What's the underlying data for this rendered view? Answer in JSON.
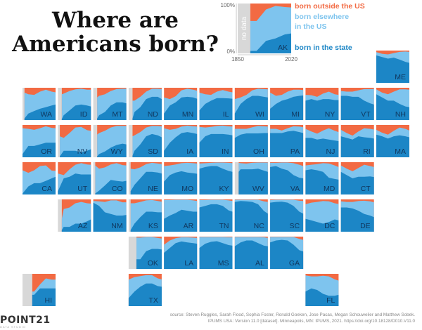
{
  "title_lines": [
    "Where are",
    "Americans born?"
  ],
  "colors": {
    "outside": "#f26a43",
    "elsewhere": "#7ec4ee",
    "state": "#1c86c6",
    "nodata": "#d8d8d8",
    "label": "#10375e"
  },
  "legend": {
    "outside_label": "born outside the US",
    "elsewhere_label_lines": [
      "born elsewhere",
      "in the US"
    ],
    "state_label": "born in the state",
    "y_max": "100%",
    "y_min": "0%",
    "x_start": "1850",
    "x_end": "2020",
    "no_data": "no data",
    "state": "AK"
  },
  "source_lines": [
    "source: Steven Ruggles, Sarah Flood, Sophia Foster, Ronald Goeken, Jose Pacas, Megan Schouweiler and Matthew Sobek.",
    "IPUMS USA: Version 11.0 [dataset]. Minneapolis, MN: IPUMS, 2021. https://doi.org/10.18128/D010.V11.0"
  ],
  "brand": "POINT21",
  "brand_sub": "DATA STUDIO",
  "chart_data": {
    "type": "area",
    "stacking": "percent",
    "x_range": [
      1850,
      2020
    ],
    "y_range": [
      0,
      100
    ],
    "series_order": [
      "born in the state",
      "born elsewhere in the US",
      "born outside the US"
    ],
    "years": [
      1850,
      1880,
      1910,
      1940,
      1970,
      2000,
      2020
    ],
    "states": [
      {
        "code": "AK",
        "start": 1890,
        "in_state": [
          null,
          null,
          5,
          25,
          30,
          38,
          40
        ],
        "outside": [
          null,
          null,
          35,
          12,
          5,
          7,
          8
        ]
      },
      {
        "code": "ME",
        "start": 1850,
        "in_state": [
          85,
          80,
          75,
          78,
          72,
          65,
          62
        ],
        "outside": [
          5,
          10,
          12,
          8,
          4,
          3,
          4
        ]
      },
      {
        "code": "WA",
        "start": 1860,
        "in_state": [
          5,
          20,
          28,
          35,
          40,
          45,
          48
        ],
        "outside": [
          15,
          20,
          22,
          12,
          6,
          12,
          14
        ]
      },
      {
        "code": "ID",
        "start": 1870,
        "in_state": [
          3,
          15,
          30,
          45,
          48,
          45,
          42
        ],
        "outside": [
          20,
          18,
          10,
          5,
          3,
          6,
          6
        ]
      },
      {
        "code": "MT",
        "start": 1870,
        "in_state": [
          5,
          15,
          25,
          45,
          55,
          55,
          52
        ],
        "outside": [
          30,
          25,
          20,
          10,
          4,
          3,
          3
        ]
      },
      {
        "code": "ND",
        "start": 1870,
        "in_state": [
          5,
          25,
          40,
          65,
          72,
          72,
          65
        ],
        "outside": [
          40,
          40,
          28,
          12,
          3,
          3,
          4
        ]
      },
      {
        "code": "MN",
        "start": 1850,
        "in_state": [
          20,
          45,
          55,
          70,
          72,
          70,
          66
        ],
        "outside": [
          30,
          35,
          26,
          8,
          3,
          6,
          9
        ]
      },
      {
        "code": "IL",
        "start": 1850,
        "in_state": [
          30,
          50,
          60,
          68,
          68,
          67,
          66
        ],
        "outside": [
          15,
          20,
          22,
          12,
          7,
          12,
          14
        ]
      },
      {
        "code": "WI",
        "start": 1850,
        "in_state": [
          20,
          50,
          65,
          75,
          75,
          72,
          70
        ],
        "outside": [
          35,
          30,
          22,
          8,
          3,
          4,
          5
        ]
      },
      {
        "code": "MI",
        "start": 1850,
        "in_state": [
          35,
          50,
          60,
          65,
          72,
          75,
          76
        ],
        "outside": [
          15,
          25,
          22,
          12,
          6,
          6,
          7
        ]
      },
      {
        "code": "NY",
        "start": 1850,
        "in_state": [
          60,
          65,
          60,
          65,
          65,
          62,
          62
        ],
        "outside": [
          22,
          23,
          28,
          18,
          12,
          20,
          22
        ]
      },
      {
        "code": "VT",
        "start": 1850,
        "in_state": [
          75,
          75,
          72,
          72,
          60,
          52,
          48
        ],
        "outside": [
          10,
          12,
          12,
          8,
          4,
          4,
          4
        ]
      },
      {
        "code": "NH",
        "start": 1850,
        "in_state": [
          80,
          70,
          60,
          60,
          50,
          42,
          40
        ],
        "outside": [
          5,
          15,
          20,
          12,
          5,
          5,
          6
        ]
      },
      {
        "code": "OR",
        "start": 1850,
        "in_state": [
          10,
          35,
          35,
          40,
          45,
          45,
          45
        ],
        "outside": [
          10,
          12,
          15,
          10,
          4,
          9,
          10
        ]
      },
      {
        "code": "NV",
        "start": 1860,
        "in_state": [
          3,
          20,
          20,
          20,
          15,
          20,
          25
        ],
        "outside": [
          35,
          40,
          25,
          8,
          6,
          16,
          18
        ]
      },
      {
        "code": "WY",
        "start": 1870,
        "in_state": [
          3,
          10,
          18,
          30,
          38,
          42,
          40
        ],
        "outside": [
          30,
          25,
          18,
          8,
          3,
          3,
          3
        ]
      },
      {
        "code": "SD",
        "start": 1870,
        "in_state": [
          5,
          20,
          40,
          65,
          72,
          68,
          62
        ],
        "outside": [
          35,
          32,
          22,
          8,
          3,
          3,
          4
        ]
      },
      {
        "code": "IA",
        "start": 1850,
        "in_state": [
          20,
          45,
          62,
          75,
          78,
          75,
          72
        ],
        "outside": [
          10,
          15,
          12,
          5,
          2,
          4,
          5
        ]
      },
      {
        "code": "IN",
        "start": 1850,
        "in_state": [
          45,
          65,
          72,
          72,
          72,
          70,
          68
        ],
        "outside": [
          6,
          8,
          6,
          3,
          2,
          4,
          5
        ]
      },
      {
        "code": "OH",
        "start": 1850,
        "in_state": [
          60,
          70,
          74,
          74,
          74,
          75,
          75
        ],
        "outside": [
          12,
          12,
          12,
          7,
          3,
          4,
          5
        ]
      },
      {
        "code": "PA",
        "start": 1850,
        "in_state": [
          75,
          75,
          75,
          80,
          82,
          78,
          75
        ],
        "outside": [
          12,
          12,
          17,
          10,
          4,
          5,
          7
        ]
      },
      {
        "code": "NJ",
        "start": 1850,
        "in_state": [
          60,
          60,
          55,
          58,
          55,
          52,
          50
        ],
        "outside": [
          12,
          20,
          27,
          17,
          10,
          18,
          22
        ]
      },
      {
        "code": "RI",
        "start": 1850,
        "in_state": [
          65,
          60,
          55,
          65,
          62,
          60,
          58
        ],
        "outside": [
          15,
          25,
          33,
          20,
          10,
          12,
          14
        ]
      },
      {
        "code": "MA",
        "start": 1850,
        "in_state": [
          70,
          65,
          58,
          65,
          68,
          65,
          62
        ],
        "outside": [
          15,
          24,
          30,
          18,
          8,
          12,
          17
        ]
      },
      {
        "code": "CA",
        "start": 1850,
        "in_state": [
          3,
          25,
          35,
          35,
          42,
          50,
          55
        ],
        "outside": [
          25,
          33,
          25,
          12,
          10,
          26,
          27
        ]
      },
      {
        "code": "UT",
        "start": 1850,
        "in_state": [
          10,
          50,
          55,
          65,
          62,
          62,
          62
        ],
        "outside": [
          35,
          40,
          22,
          8,
          3,
          7,
          8
        ]
      },
      {
        "code": "CO",
        "start": 1860,
        "in_state": [
          3,
          12,
          28,
          45,
          42,
          40,
          42
        ],
        "outside": [
          10,
          20,
          16,
          7,
          3,
          9,
          10
        ]
      },
      {
        "code": "NE",
        "start": 1860,
        "in_state": [
          10,
          30,
          50,
          70,
          70,
          68,
          65
        ],
        "outside": [
          20,
          22,
          16,
          6,
          2,
          4,
          6
        ]
      },
      {
        "code": "MO",
        "start": 1850,
        "in_state": [
          40,
          60,
          68,
          72,
          68,
          66,
          64
        ],
        "outside": [
          12,
          10,
          7,
          3,
          2,
          3,
          4
        ]
      },
      {
        "code": "KY",
        "start": 1850,
        "in_state": [
          80,
          85,
          88,
          88,
          80,
          73,
          70
        ],
        "outside": [
          4,
          3,
          2,
          1,
          1,
          2,
          3
        ]
      },
      {
        "code": "WV",
        "start": 1870,
        "in_state": [
          70,
          78,
          78,
          78,
          80,
          74,
          70
        ],
        "outside": [
          2,
          3,
          4,
          2,
          1,
          1,
          1
        ]
      },
      {
        "code": "VA",
        "start": 1850,
        "in_state": [
          85,
          88,
          80,
          75,
          60,
          52,
          50
        ],
        "outside": [
          2,
          2,
          1,
          1,
          3,
          8,
          12
        ]
      },
      {
        "code": "MD",
        "start": 1850,
        "in_state": [
          75,
          78,
          75,
          70,
          52,
          48,
          46
        ],
        "outside": [
          10,
          8,
          6,
          3,
          4,
          10,
          15
        ]
      },
      {
        "code": "CT",
        "start": 1850,
        "in_state": [
          70,
          60,
          50,
          55,
          55,
          56,
          54
        ],
        "outside": [
          10,
          20,
          28,
          18,
          8,
          12,
          15
        ]
      },
      {
        "code": "AZ",
        "start": 1870,
        "in_state": [
          5,
          15,
          15,
          25,
          25,
          32,
          38
        ],
        "outside": [
          60,
          30,
          25,
          12,
          8,
          12,
          13
        ]
      },
      {
        "code": "NM",
        "start": 1850,
        "in_state": [
          90,
          80,
          60,
          55,
          50,
          50,
          52
        ],
        "outside": [
          5,
          6,
          8,
          3,
          3,
          9,
          9
        ]
      },
      {
        "code": "KS",
        "start": 1860,
        "in_state": [
          5,
          25,
          45,
          62,
          62,
          60,
          60
        ],
        "outside": [
          12,
          12,
          8,
          3,
          2,
          5,
          7
        ]
      },
      {
        "code": "AR",
        "start": 1850,
        "in_state": [
          40,
          50,
          58,
          68,
          65,
          62,
          62
        ],
        "outside": [
          2,
          2,
          1,
          1,
          1,
          3,
          5
        ]
      },
      {
        "code": "TN",
        "start": 1850,
        "in_state": [
          75,
          80,
          85,
          85,
          80,
          66,
          62
        ],
        "outside": [
          2,
          2,
          1,
          1,
          1,
          3,
          5
        ]
      },
      {
        "code": "NC",
        "start": 1850,
        "in_state": [
          92,
          95,
          94,
          92,
          85,
          64,
          56
        ],
        "outside": [
          1,
          1,
          1,
          1,
          1,
          6,
          8
        ]
      },
      {
        "code": "SC",
        "start": 1850,
        "in_state": [
          90,
          92,
          93,
          90,
          80,
          62,
          56
        ],
        "outside": [
          2,
          1,
          1,
          1,
          1,
          4,
          5
        ]
      },
      {
        "code": "DC",
        "start": 1850,
        "in_state": [
          40,
          35,
          30,
          25,
          30,
          38,
          35
        ],
        "outside": [
          15,
          10,
          8,
          5,
          6,
          12,
          14
        ]
      },
      {
        "code": "DE",
        "start": 1850,
        "in_state": [
          75,
          75,
          72,
          65,
          55,
          50,
          45
        ],
        "outside": [
          6,
          8,
          8,
          5,
          4,
          6,
          9
        ]
      },
      {
        "code": "OK",
        "start": 1890,
        "in_state": [
          null,
          null,
          30,
          55,
          62,
          62,
          60
        ],
        "outside": [
          null,
          null,
          3,
          1,
          1,
          4,
          6
        ]
      },
      {
        "code": "LA",
        "start": 1850,
        "in_state": [
          50,
          65,
          80,
          85,
          82,
          80,
          78
        ],
        "outside": [
          25,
          12,
          5,
          2,
          2,
          3,
          4
        ]
      },
      {
        "code": "MS",
        "start": 1850,
        "in_state": [
          65,
          78,
          84,
          86,
          80,
          74,
          72
        ],
        "outside": [
          1,
          1,
          1,
          1,
          1,
          2,
          2
        ]
      },
      {
        "code": "AL",
        "start": 1850,
        "in_state": [
          70,
          82,
          88,
          88,
          80,
          72,
          70
        ],
        "outside": [
          1,
          1,
          1,
          1,
          1,
          2,
          4
        ]
      },
      {
        "code": "GA",
        "start": 1850,
        "in_state": [
          82,
          88,
          90,
          88,
          75,
          58,
          54
        ],
        "outside": [
          1,
          1,
          1,
          1,
          1,
          7,
          10
        ]
      },
      {
        "code": "HI",
        "start": 1900,
        "in_state": [
          null,
          null,
          35,
          55,
          55,
          55,
          55
        ],
        "outside": [
          null,
          null,
          55,
          33,
          14,
          18,
          18
        ]
      },
      {
        "code": "TX",
        "start": 1850,
        "in_state": [
          25,
          45,
          60,
          70,
          70,
          62,
          60
        ],
        "outside": [
          18,
          10,
          7,
          4,
          4,
          14,
          17
        ]
      },
      {
        "code": "FL",
        "start": 1850,
        "in_state": [
          45,
          55,
          50,
          38,
          32,
          32,
          35
        ],
        "outside": [
          5,
          8,
          8,
          6,
          8,
          17,
          21
        ]
      }
    ]
  }
}
